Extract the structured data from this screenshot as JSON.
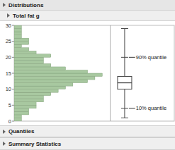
{
  "chart_data": {
    "type": "histogram",
    "title": "Distributions",
    "subtitle": "Total fat g",
    "orientation": "horizontal",
    "bins": [
      0,
      1,
      2,
      3,
      4,
      5,
      6,
      7,
      8,
      9,
      10,
      11,
      12,
      13,
      14,
      15,
      16,
      17,
      18,
      19,
      20,
      21,
      22,
      23,
      24,
      25,
      26,
      27,
      28,
      29,
      30
    ],
    "counts": [
      1,
      1,
      2,
      2,
      3,
      3,
      4,
      4,
      5,
      6,
      7,
      8,
      10,
      11,
      12,
      10,
      7,
      5,
      4,
      4,
      5,
      3,
      2,
      1,
      2,
      2,
      1,
      1,
      1,
      1
    ],
    "color": "#a8c8a0",
    "ylim": [
      0,
      30
    ],
    "yticks": [
      0,
      5,
      10,
      15,
      20,
      25,
      30
    ],
    "tick_labels": "y",
    "box": {
      "whisker_min": 1,
      "q10": 4,
      "q25": 10,
      "median": 12,
      "q75": 14,
      "q90": 20,
      "whisker_max": 29,
      "q10_label": "10% quantile",
      "q90_label": "90% quantile"
    },
    "footers": [
      "Quantiles",
      "Summary Statistics"
    ]
  }
}
